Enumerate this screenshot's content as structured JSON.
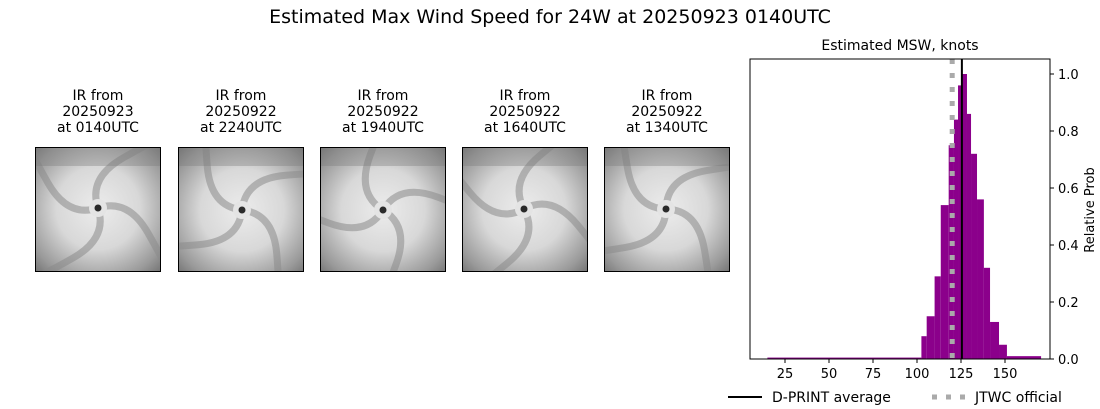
{
  "figure": {
    "suptitle": "Estimated Max Wind Speed for 24W at 20250923 0140UTC"
  },
  "ir_panels": [
    {
      "title": "IR from\n20250923\nat 0140UTC",
      "eye": [
        62,
        60
      ],
      "rot": 0
    },
    {
      "title": "IR from\n20250922\nat 2240UTC",
      "eye": [
        63,
        62
      ],
      "rot": 25
    },
    {
      "title": "IR from\n20250922\nat 1940UTC",
      "eye": [
        62,
        62
      ],
      "rot": 50
    },
    {
      "title": "IR from\n20250922\nat 1640UTC",
      "eye": [
        61,
        61
      ],
      "rot": 80
    },
    {
      "title": "IR from\n20250922\nat 1340UTC",
      "eye": [
        61,
        61
      ],
      "rot": 110
    }
  ],
  "chart_data": {
    "type": "bar",
    "title": "Estimated MSW, knots",
    "xlabel": "",
    "ylabel": "Relative Prob",
    "xlim": [
      5,
      175
    ],
    "ylim": [
      0,
      1.05
    ],
    "xticks": [
      25,
      50,
      75,
      100,
      125,
      150
    ],
    "yticks": [
      0.0,
      0.2,
      0.4,
      0.6,
      0.8,
      1.0
    ],
    "ytick_labels": [
      "0.0",
      "0.2",
      "0.4",
      "0.6",
      "0.8",
      "1.0"
    ],
    "grid": false,
    "bar_color": "#8B008B",
    "bins": [
      {
        "x0": 15,
        "x1": 102.5,
        "value": 0.005
      },
      {
        "x0": 102.5,
        "x1": 105.5,
        "value": 0.08
      },
      {
        "x0": 105.5,
        "x1": 110,
        "value": 0.15
      },
      {
        "x0": 110,
        "x1": 113.5,
        "value": 0.29
      },
      {
        "x0": 113.5,
        "x1": 118,
        "value": 0.54
      },
      {
        "x0": 118,
        "x1": 121,
        "value": 0.75
      },
      {
        "x0": 121,
        "x1": 123.3,
        "value": 0.84
      },
      {
        "x0": 123.3,
        "x1": 125.6,
        "value": 0.96
      },
      {
        "x0": 125.6,
        "x1": 128.4,
        "value": 1.0
      },
      {
        "x0": 128.4,
        "x1": 130.7,
        "value": 0.86
      },
      {
        "x0": 130.7,
        "x1": 134.1,
        "value": 0.72
      },
      {
        "x0": 134.1,
        "x1": 138,
        "value": 0.56
      },
      {
        "x0": 138,
        "x1": 141.5,
        "value": 0.32
      },
      {
        "x0": 141.5,
        "x1": 146.6,
        "value": 0.13
      },
      {
        "x0": 146.6,
        "x1": 151.1,
        "value": 0.05
      },
      {
        "x0": 151.1,
        "x1": 170.5,
        "value": 0.01
      }
    ],
    "vlines": [
      {
        "name": "D-PRINT average",
        "x": 125.5,
        "color": "#000000",
        "style": "solid"
      },
      {
        "name": "JTWC official",
        "x": 120,
        "color": "#aaaaaa",
        "style": "dotted"
      }
    ],
    "legend": {
      "position": "below",
      "entries": [
        "D-PRINT average",
        "JTWC official"
      ]
    }
  }
}
